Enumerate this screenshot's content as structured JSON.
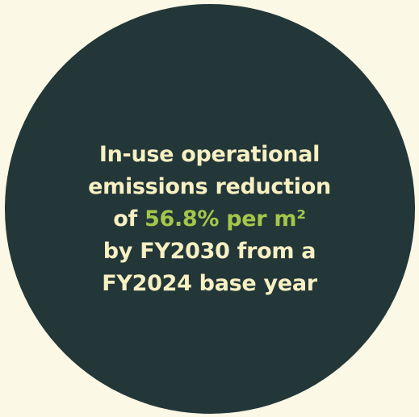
{
  "colors": {
    "background": "#fbf8e5",
    "circle": "#233638",
    "text": "#f6f0c2",
    "highlight": "#a4c64a"
  },
  "statement": {
    "line1": "In-use operational",
    "line2": "emissions reduction",
    "line3_prefix": "of ",
    "line3_highlight": "56.8% per m²",
    "line4": "by FY2030 from a",
    "line5": "FY2024 base year"
  }
}
